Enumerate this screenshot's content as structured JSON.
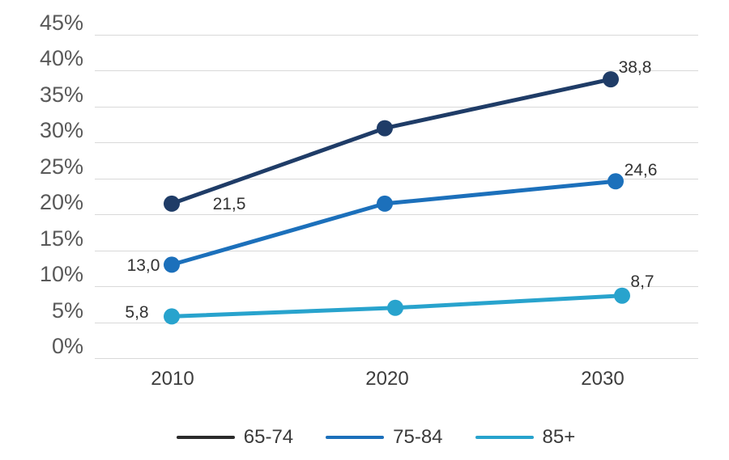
{
  "chart_data": {
    "type": "line",
    "title": "",
    "x_categories": [
      "2010",
      "2020",
      "2030"
    ],
    "series": [
      {
        "name": "65-74",
        "color": "#1f3c67",
        "legend_color": "#2b2b2b",
        "values": [
          21.5,
          32.0,
          38.8
        ],
        "point_labels": [
          "21,5",
          "",
          "38,8"
        ]
      },
      {
        "name": "75-84",
        "color": "#1c70bb",
        "legend_color": "#1c70bb",
        "values": [
          13.0,
          21.5,
          24.6
        ],
        "point_labels": [
          "13,0",
          "",
          "24,6"
        ]
      },
      {
        "name": "85+",
        "color": "#28a3cd",
        "legend_color": "#28a3cd",
        "values": [
          5.8,
          7.0,
          8.7
        ],
        "point_labels": [
          "5,8",
          "",
          "8,7"
        ]
      }
    ],
    "y_axis": {
      "tick_labels": [
        "45%",
        "40%",
        "35%",
        "30%",
        "25%",
        "20%",
        "15%",
        "10%",
        "5%",
        "0%"
      ],
      "min": 0,
      "max": 45,
      "step": 5
    },
    "grid": true,
    "legend_position": "bottom"
  },
  "colors": {
    "background": "#ffffff",
    "gridline": "#d9d9d9",
    "y_tick_text": "#595959",
    "x_tick_text": "#3d3d3d",
    "data_label_text": "#333333",
    "legend_text": "#3a3a3a"
  }
}
